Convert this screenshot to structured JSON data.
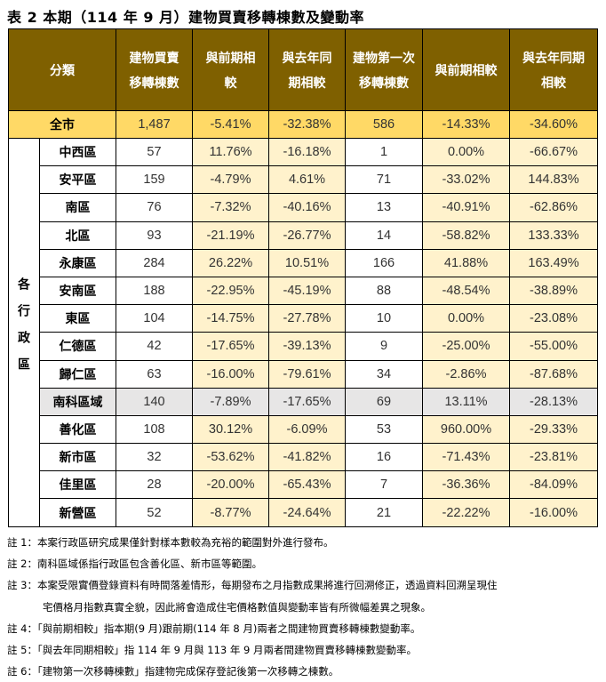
{
  "title": "表 2 本期（114 年 9 月）建物買賣移轉棟數及變動率",
  "headers": [
    "分類",
    "建物買賣移轉棟數",
    "與前期相較",
    "與去年同期相較",
    "建物第一次移轉棟數",
    "與前期相較",
    "與去年同期相較"
  ],
  "city": {
    "name": "全市",
    "values": [
      "1,487",
      "-5.41%",
      "-32.38%",
      "586",
      "-14.33%",
      "-34.60%"
    ]
  },
  "group_label": "各行政區",
  "rows": [
    {
      "name": "中西區",
      "values": [
        "57",
        "11.76%",
        "-16.18%",
        "1",
        "0.00%",
        "-66.67%"
      ]
    },
    {
      "name": "安平區",
      "values": [
        "159",
        "-4.79%",
        "4.61%",
        "71",
        "-33.02%",
        "144.83%"
      ]
    },
    {
      "name": "南區",
      "values": [
        "76",
        "-7.32%",
        "-40.16%",
        "13",
        "-40.91%",
        "-62.86%"
      ]
    },
    {
      "name": "北區",
      "values": [
        "93",
        "-21.19%",
        "-26.77%",
        "14",
        "-58.82%",
        "133.33%"
      ]
    },
    {
      "name": "永康區",
      "values": [
        "284",
        "26.22%",
        "10.51%",
        "166",
        "41.88%",
        "163.49%"
      ]
    },
    {
      "name": "安南區",
      "values": [
        "188",
        "-22.95%",
        "-45.19%",
        "88",
        "-48.54%",
        "-38.89%"
      ]
    },
    {
      "name": "東區",
      "values": [
        "104",
        "-14.75%",
        "-27.78%",
        "10",
        "0.00%",
        "-23.08%"
      ]
    },
    {
      "name": "仁德區",
      "values": [
        "42",
        "-17.65%",
        "-39.13%",
        "9",
        "-25.00%",
        "-55.00%"
      ]
    },
    {
      "name": "歸仁區",
      "values": [
        "63",
        "-16.00%",
        "-79.61%",
        "34",
        "-2.86%",
        "-87.68%"
      ]
    },
    {
      "name": "南科區域",
      "values": [
        "140",
        "-7.89%",
        "-17.65%",
        "69",
        "13.11%",
        "-28.13%"
      ],
      "highlight": true
    },
    {
      "name": "善化區",
      "values": [
        "108",
        "30.12%",
        "-6.09%",
        "53",
        "960.00%",
        "-29.33%"
      ]
    },
    {
      "name": "新市區",
      "values": [
        "32",
        "-53.62%",
        "-41.82%",
        "16",
        "-71.43%",
        "-23.81%"
      ]
    },
    {
      "name": "佳里區",
      "values": [
        "28",
        "-20.00%",
        "-65.43%",
        "7",
        "-36.36%",
        "-84.09%"
      ]
    },
    {
      "name": "新營區",
      "values": [
        "52",
        "-8.77%",
        "-24.64%",
        "21",
        "-22.22%",
        "-16.00%"
      ]
    }
  ],
  "notes": [
    "註 1：本案行政區研究成果僅針對樣本數較為充裕的範圍對外進行發布。",
    "註 2：南科區域係指行政區包含善化區、新市區等範圍。",
    "註 3：本案受限實價登錄資料有時間落差情形，每期發布之月指數成果將進行回溯修正，透過資料回溯呈現住",
    "宅價格月指數真實全貌，因此將會造成住宅價格數值與變動率皆有所微幅差異之現象。",
    "註 4：「與前期相較」指本期(9 月)跟前期(114 年 8 月)兩者之間建物買賣移轉棟數變動率。",
    "註 5：「與去年同期相較」指 114 年 9 月與 113 年 9 月兩者間建物買賣移轉棟數變動率。",
    "註 6：「建物第一次移轉棟數」指建物完成保存登記後第一次移轉之棟數。"
  ],
  "colors": {
    "header": "#7F6000",
    "city_row": "#FFD966",
    "pct_cell": "#FFF2CC",
    "nanke_row": "#E7E6E6"
  }
}
